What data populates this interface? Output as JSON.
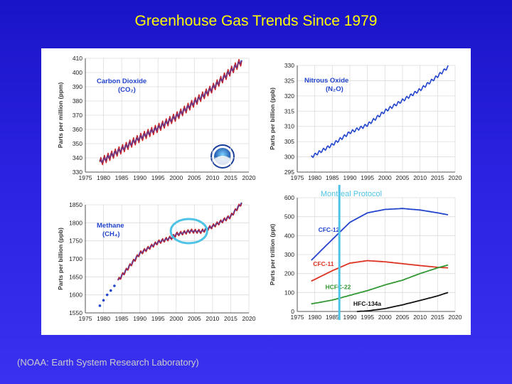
{
  "slide": {
    "title": "Greenhouse Gas Trends Since 1979",
    "source": "(NOAA:  Earth System Research Laboratory)",
    "annotation": "Montreal Protocol"
  },
  "colors": {
    "background": "#2a22e0",
    "title": "#ffff00",
    "series_blue": "#2244cc",
    "series_red": "#cc2222",
    "cfc11": "#dd3322",
    "hcfc22": "#339933",
    "hfc134a": "#111111",
    "highlight": "#4fc3e6"
  },
  "chart_data": [
    {
      "id": "co2",
      "type": "line",
      "label_line1": "Carbon Dioxide",
      "label_line2": "(CO₂)",
      "ylabel": "Parts per million (ppm)",
      "xlim": [
        1975,
        2020
      ],
      "ylim": [
        330,
        410
      ],
      "xticks": [
        "1975",
        "1980",
        "1985",
        "1990",
        "1995",
        "2000",
        "2005",
        "2010",
        "2015",
        "2020"
      ],
      "yticks": [
        "330",
        "340",
        "350",
        "360",
        "370",
        "380",
        "390",
        "400",
        "410"
      ],
      "x": [
        1979,
        1985,
        1990,
        1995,
        2000,
        2005,
        2010,
        2015,
        2018
      ],
      "values": [
        337,
        346,
        354,
        361,
        369,
        379,
        389,
        401,
        408
      ],
      "seasonal_amplitude": 3
    },
    {
      "id": "n2o",
      "type": "line",
      "label_line1": "Nitrous Oxide",
      "label_line2": "(N₂O)",
      "ylabel": "Parts per billion (ppb)",
      "xlim": [
        1975,
        2020
      ],
      "ylim": [
        295,
        330
      ],
      "xticks": [
        "1975",
        "1980",
        "1985",
        "1990",
        "1995",
        "2000",
        "2005",
        "2010",
        "2015",
        "2020"
      ],
      "yticks": [
        "295",
        "300",
        "305",
        "310",
        "315",
        "320",
        "325",
        "330"
      ],
      "x": [
        1979,
        1985,
        1990,
        1995,
        2000,
        2005,
        2010,
        2015,
        2018
      ],
      "values": [
        300,
        304,
        308,
        310.5,
        315,
        318.5,
        322,
        326.5,
        329.5
      ]
    },
    {
      "id": "ch4",
      "type": "line",
      "label_line1": "Methane",
      "label_line2": "(CH₄)",
      "ylabel": "Parts per billion (ppb)",
      "xlim": [
        1975,
        2020
      ],
      "ylim": [
        1550,
        1850
      ],
      "xticks": [
        "1975",
        "1980",
        "1985",
        "1990",
        "1995",
        "2000",
        "2005",
        "2010",
        "2015",
        "2020"
      ],
      "yticks": [
        "1550",
        "1600",
        "1650",
        "1700",
        "1750",
        "1800",
        "1850"
      ],
      "early_x": [
        1979,
        1980,
        1981,
        1982,
        1983
      ],
      "early_values": [
        1570,
        1585,
        1600,
        1612,
        1625
      ],
      "x": [
        1984,
        1990,
        1995,
        1999,
        2000,
        2004,
        2007,
        2010,
        2015,
        2018
      ],
      "values": [
        1640,
        1715,
        1746,
        1760,
        1768,
        1777,
        1776,
        1790,
        1818,
        1855
      ],
      "plateau_range": [
        2000,
        2007
      ],
      "seasonal_amplitude": 6
    },
    {
      "id": "cfcs",
      "type": "line",
      "ylabel": "Parts per trillion (ppt)",
      "xlim": [
        1975,
        2020
      ],
      "ylim": [
        0,
        600
      ],
      "xticks": [
        "1975",
        "1980",
        "1985",
        "1990",
        "1995",
        "2000",
        "2005",
        "2010",
        "2015",
        "2020"
      ],
      "yticks": [
        "0",
        "100",
        "200",
        "300",
        "400",
        "500",
        "600"
      ],
      "series": [
        {
          "name": "CFC-12",
          "x": [
            1979,
            1985,
            1990,
            1995,
            2000,
            2005,
            2010,
            2015,
            2018
          ],
          "values": [
            270,
            380,
            470,
            520,
            538,
            543,
            535,
            520,
            510
          ]
        },
        {
          "name": "CFC-11",
          "x": [
            1979,
            1985,
            1990,
            1995,
            2000,
            2005,
            2010,
            2015,
            2018
          ],
          "values": [
            160,
            215,
            255,
            268,
            262,
            252,
            242,
            233,
            230
          ]
        },
        {
          "name": "HCFC-22",
          "x": [
            1979,
            1985,
            1990,
            1995,
            2000,
            2005,
            2010,
            2015,
            2018
          ],
          "values": [
            40,
            60,
            85,
            110,
            140,
            165,
            200,
            230,
            245
          ]
        },
        {
          "name": "HFC-134a",
          "x": [
            1992,
            1995,
            2000,
            2005,
            2010,
            2015,
            2018
          ],
          "values": [
            0,
            3,
            15,
            35,
            58,
            82,
            100
          ]
        }
      ],
      "annotation_year": 1987
    }
  ]
}
